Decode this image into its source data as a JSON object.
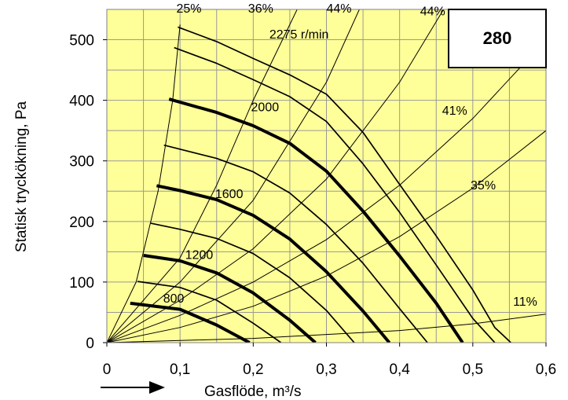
{
  "chart_data": {
    "type": "line",
    "xlabel": "Gasflöde, m³/s",
    "ylabel": "Statisk tryckökning, Pa",
    "xlim": [
      0,
      0.6
    ],
    "ylim": [
      0,
      550
    ],
    "x_ticks": [
      "0",
      "0,1",
      "0,2",
      "0,3",
      "0,4",
      "0,5",
      "0,6"
    ],
    "y_ticks": [
      "0",
      "100",
      "200",
      "300",
      "400",
      "500"
    ],
    "grid": true,
    "badge": "280",
    "background_color": "#ffff99",
    "speed_series": [
      {
        "name": "2275 r/min",
        "bold": false,
        "points": [
          [
            0.097,
            521
          ],
          [
            0.15,
            497
          ],
          [
            0.2,
            469
          ],
          [
            0.25,
            442
          ],
          [
            0.3,
            410
          ],
          [
            0.35,
            347
          ],
          [
            0.4,
            261
          ],
          [
            0.45,
            176
          ],
          [
            0.5,
            87
          ],
          [
            0.53,
            25
          ],
          [
            0.552,
            0
          ]
        ]
      },
      {
        "name": "",
        "bold": false,
        "points": [
          [
            0.092,
            487
          ],
          [
            0.15,
            461
          ],
          [
            0.2,
            434
          ],
          [
            0.25,
            406
          ],
          [
            0.3,
            365
          ],
          [
            0.35,
            295
          ],
          [
            0.4,
            215
          ],
          [
            0.45,
            128
          ],
          [
            0.5,
            40
          ],
          [
            0.53,
            0
          ]
        ]
      },
      {
        "name": "2000",
        "bold": true,
        "points": [
          [
            0.085,
            402
          ],
          [
            0.15,
            380
          ],
          [
            0.2,
            358
          ],
          [
            0.25,
            329
          ],
          [
            0.3,
            283
          ],
          [
            0.35,
            217
          ],
          [
            0.4,
            143
          ],
          [
            0.45,
            65
          ],
          [
            0.486,
            0
          ]
        ]
      },
      {
        "name": "",
        "bold": false,
        "points": [
          [
            0.078,
            326
          ],
          [
            0.15,
            304
          ],
          [
            0.2,
            282
          ],
          [
            0.25,
            247
          ],
          [
            0.3,
            195
          ],
          [
            0.35,
            131
          ],
          [
            0.4,
            56
          ],
          [
            0.438,
            0
          ]
        ]
      },
      {
        "name": "1600",
        "bold": true,
        "points": [
          [
            0.068,
            259
          ],
          [
            0.1,
            251
          ],
          [
            0.15,
            236
          ],
          [
            0.2,
            210
          ],
          [
            0.25,
            171
          ],
          [
            0.3,
            117
          ],
          [
            0.35,
            52
          ],
          [
            0.386,
            0
          ]
        ]
      },
      {
        "name": "",
        "bold": false,
        "points": [
          [
            0.06,
            197
          ],
          [
            0.1,
            187
          ],
          [
            0.15,
            172
          ],
          [
            0.2,
            147
          ],
          [
            0.25,
            107
          ],
          [
            0.3,
            53
          ],
          [
            0.338,
            0
          ]
        ]
      },
      {
        "name": "1200",
        "bold": true,
        "points": [
          [
            0.05,
            144
          ],
          [
            0.1,
            135
          ],
          [
            0.15,
            115
          ],
          [
            0.2,
            82
          ],
          [
            0.25,
            37
          ],
          [
            0.285,
            0
          ]
        ]
      },
      {
        "name": "",
        "bold": false,
        "points": [
          [
            0.042,
            101
          ],
          [
            0.1,
            91
          ],
          [
            0.15,
            70
          ],
          [
            0.2,
            32
          ],
          [
            0.238,
            0
          ]
        ]
      },
      {
        "name": "800",
        "bold": true,
        "points": [
          [
            0.032,
            65
          ],
          [
            0.1,
            55
          ],
          [
            0.15,
            29
          ],
          [
            0.195,
            0
          ]
        ]
      }
    ],
    "efficiency_series": [
      {
        "name": "25%",
        "points": [
          [
            0,
            0
          ],
          [
            0.04,
            100
          ],
          [
            0.07,
            250
          ],
          [
            0.09,
            400
          ],
          [
            0.1,
            525
          ]
        ]
      },
      {
        "name": "36%",
        "points": [
          [
            0,
            0
          ],
          [
            0.1,
            140
          ],
          [
            0.15,
            260
          ],
          [
            0.2,
            400
          ],
          [
            0.26,
            550
          ]
        ]
      },
      {
        "name": "44%",
        "points": [
          [
            0,
            0
          ],
          [
            0.1,
            100
          ],
          [
            0.2,
            235
          ],
          [
            0.3,
            430
          ],
          [
            0.345,
            550
          ]
        ]
      },
      {
        "name": "44%",
        "points": [
          [
            0,
            0
          ],
          [
            0.1,
            70
          ],
          [
            0.2,
            155
          ],
          [
            0.3,
            270
          ],
          [
            0.4,
            430
          ],
          [
            0.46,
            550
          ]
        ]
      },
      {
        "name": "41%",
        "points": [
          [
            0,
            0
          ],
          [
            0.1,
            45
          ],
          [
            0.2,
            100
          ],
          [
            0.3,
            170
          ],
          [
            0.4,
            260
          ],
          [
            0.5,
            370
          ],
          [
            0.6,
            500
          ]
        ]
      },
      {
        "name": "35%",
        "points": [
          [
            0,
            0
          ],
          [
            0.1,
            25
          ],
          [
            0.2,
            60
          ],
          [
            0.3,
            110
          ],
          [
            0.4,
            175
          ],
          [
            0.5,
            255
          ],
          [
            0.6,
            350
          ]
        ]
      },
      {
        "name": "11%",
        "points": [
          [
            0,
            0
          ],
          [
            0.2,
            7
          ],
          [
            0.4,
            20
          ],
          [
            0.5,
            31
          ],
          [
            0.6,
            47
          ]
        ]
      }
    ],
    "curve_labels": [
      {
        "text": "25%",
        "x": 0.095,
        "y": 545
      },
      {
        "text": "36%",
        "x": 0.193,
        "y": 545
      },
      {
        "text": "44%",
        "x": 0.3,
        "y": 545
      },
      {
        "text": "44%",
        "x": 0.428,
        "y": 540
      },
      {
        "text": "2275 r/min",
        "x": 0.222,
        "y": 502
      },
      {
        "text": "2000",
        "x": 0.197,
        "y": 382
      },
      {
        "text": "41%",
        "x": 0.458,
        "y": 376
      },
      {
        "text": "1600",
        "x": 0.148,
        "y": 239
      },
      {
        "text": "35%",
        "x": 0.497,
        "y": 253
      },
      {
        "text": "1200",
        "x": 0.107,
        "y": 138
      },
      {
        "text": "800",
        "x": 0.077,
        "y": 66
      },
      {
        "text": "11%",
        "x": 0.555,
        "y": 61
      }
    ]
  }
}
